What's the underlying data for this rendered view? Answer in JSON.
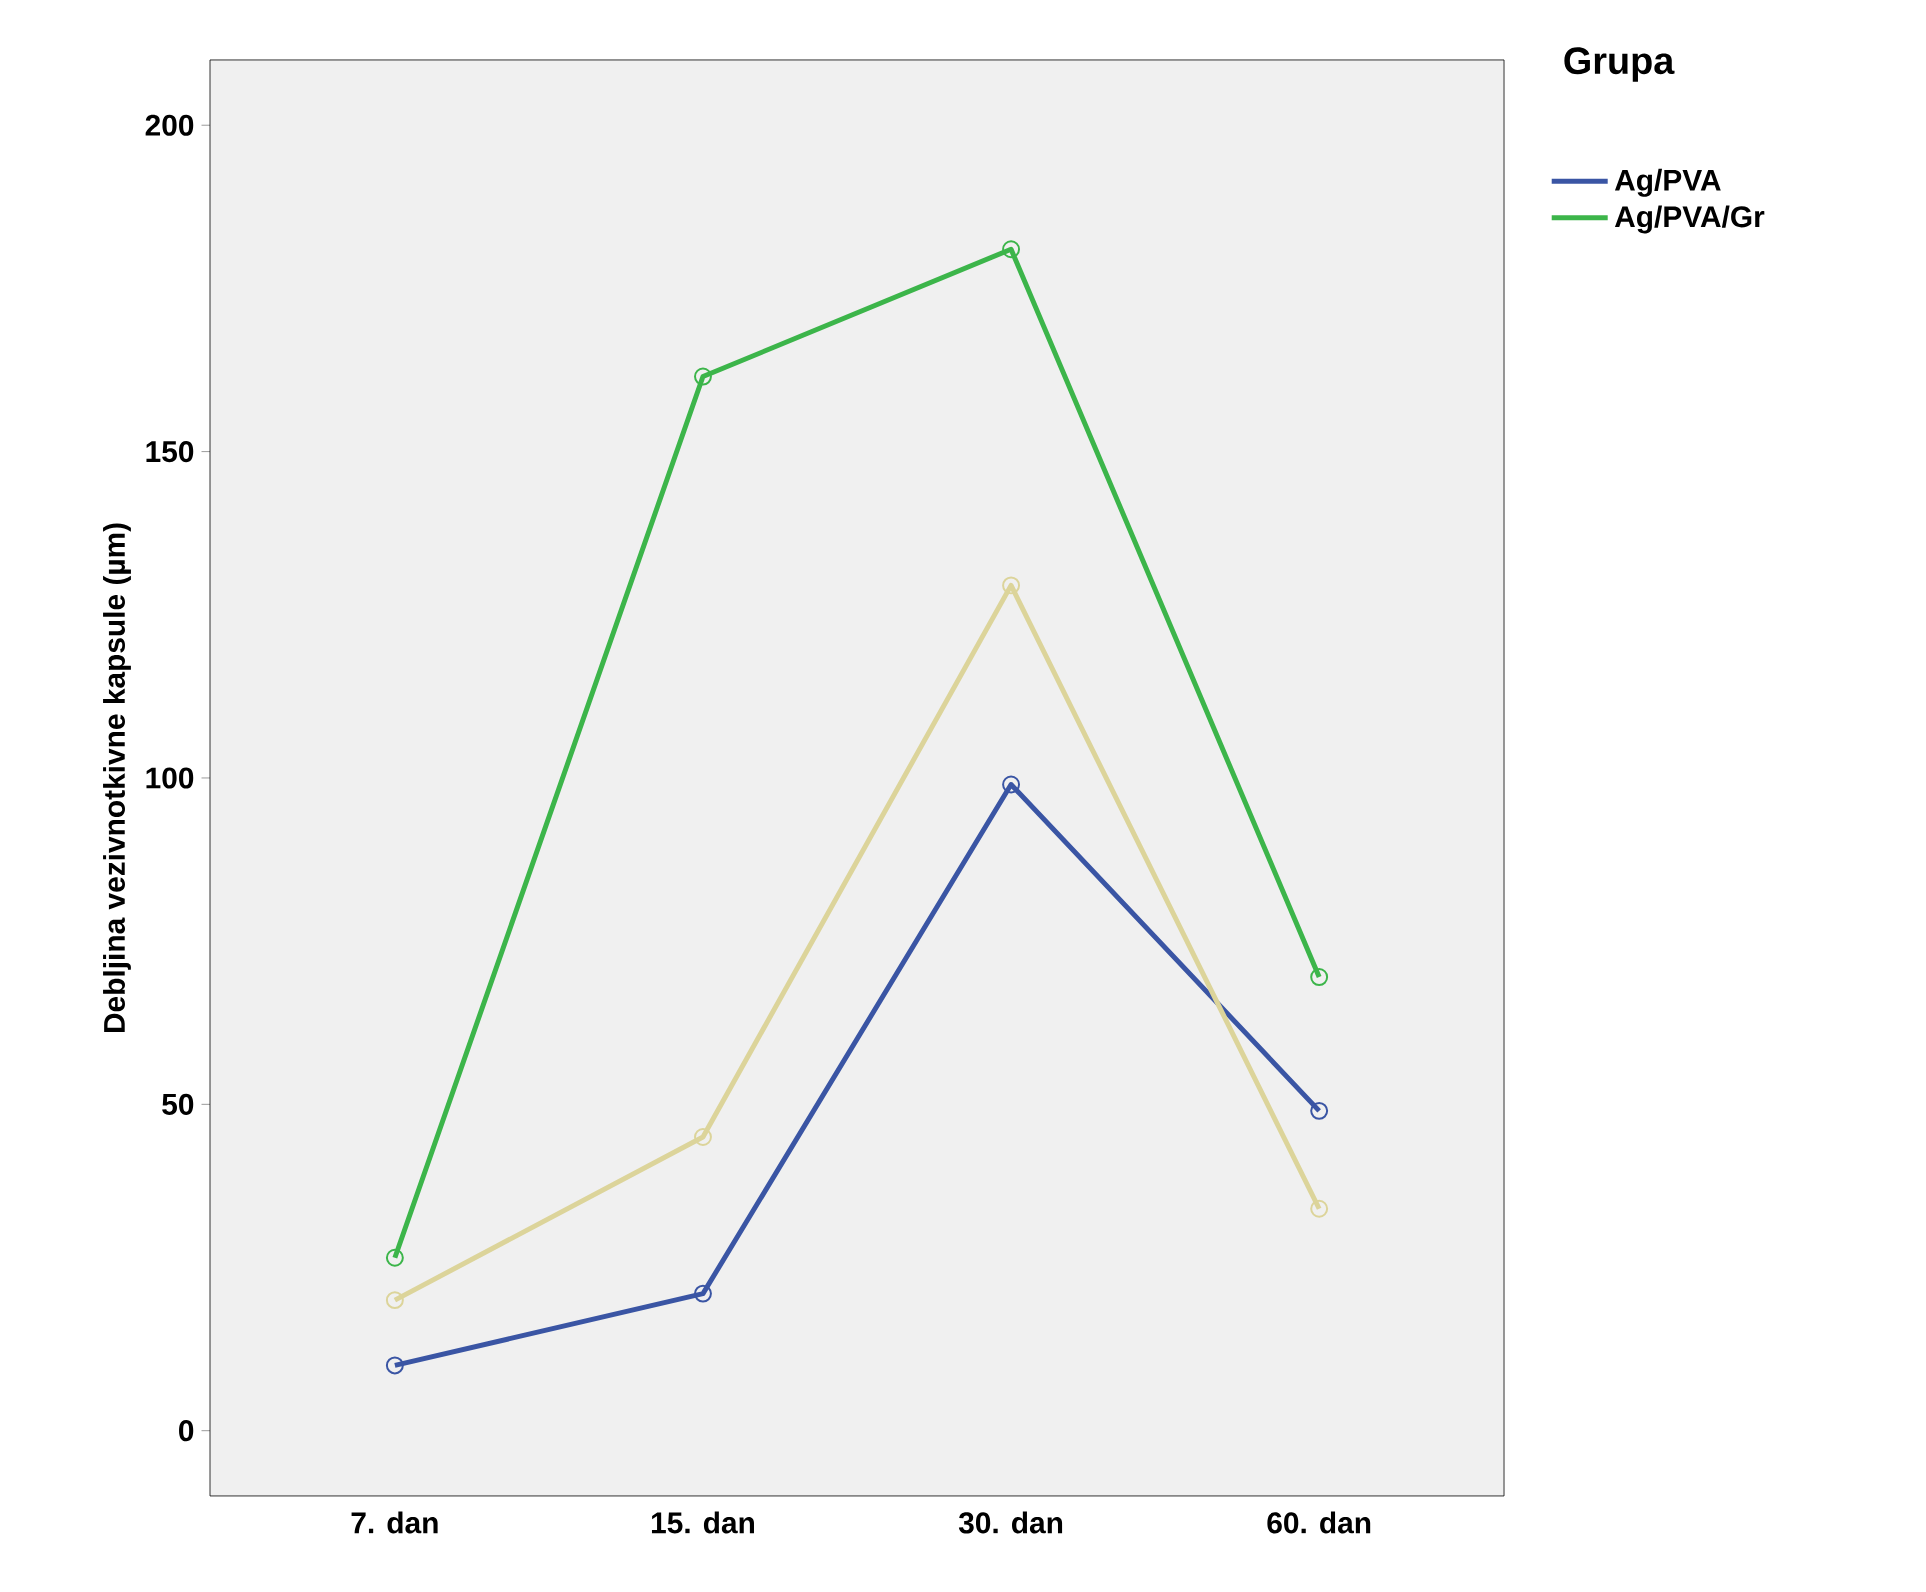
{
  "chart_data": {
    "type": "line",
    "ylabel": "Debljina vezivnotkivne kapsule (µm)",
    "legend_title": "Grupa",
    "categories": [
      "7. dan",
      "15. dan",
      "30. dan",
      "60. dan"
    ],
    "series": [
      {
        "name": "Ag/PVA",
        "color": "#3a55a4",
        "values": [
          10,
          21,
          99,
          49
        ]
      },
      {
        "name": "Ag/PVA/Gr",
        "color": "#3cb54a",
        "values": [
          26.5,
          161.5,
          181,
          69.5
        ]
      },
      {
        "color": "#dcd49a",
        "values": [
          20,
          45,
          129.5,
          34
        ]
      }
    ],
    "ylim": [
      -10,
      210
    ],
    "yticks": [
      0,
      50,
      100,
      150,
      200
    ],
    "grid": false,
    "legend": "right",
    "marker": "circle",
    "line_style": "solid"
  }
}
